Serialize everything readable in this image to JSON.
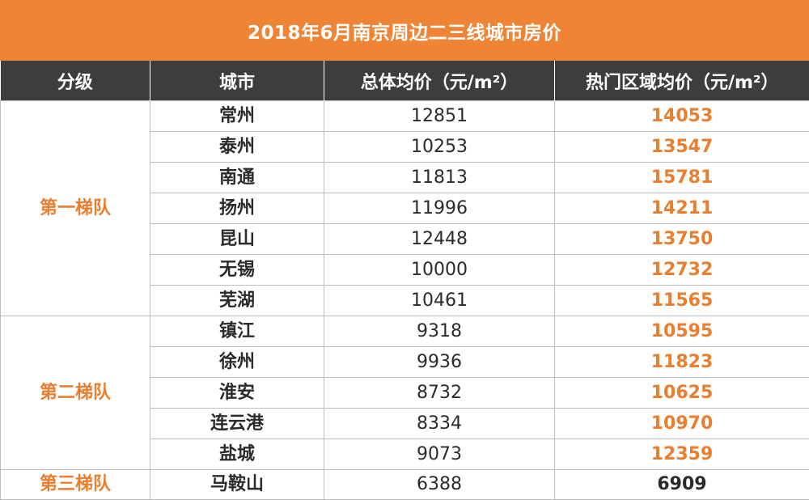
{
  "title": "2018年6月南京周边二三线城市房价",
  "headers": [
    "分级",
    "城市",
    "总体均价（元/m²）",
    "热门区域均价（元/m²）"
  ],
  "tiers": [
    {
      "label": "第一梯队",
      "rows": [
        {
          "city": "常州",
          "avg": "12851",
          "hot": "14053"
        },
        {
          "city": "泰州",
          "avg": "10253",
          "hot": "13547"
        },
        {
          "city": "南通",
          "avg": "11813",
          "hot": "15781"
        },
        {
          "city": "扬州",
          "avg": "11996",
          "hot": "14211"
        },
        {
          "city": "昆山",
          "avg": "12448",
          "hot": "13750"
        },
        {
          "city": "无锡",
          "avg": "10000",
          "hot": "12732"
        },
        {
          "city": "芜湖",
          "avg": "10461",
          "hot": "11565"
        }
      ]
    },
    {
      "label": "第二梯队",
      "rows": [
        {
          "city": "镇江",
          "avg": "9318",
          "hot": "10595"
        },
        {
          "city": "徐州",
          "avg": "9936",
          "hot": "11823"
        },
        {
          "city": "淮安",
          "avg": "8732",
          "hot": "10625"
        },
        {
          "city": "连云港",
          "avg": "8334",
          "hot": "10970"
        },
        {
          "city": "盐城",
          "avg": "9073",
          "hot": "12359"
        }
      ]
    },
    {
      "label": "第三梯队",
      "rows": [
        {
          "city": "马鞍山",
          "avg": "6388",
          "hot": "6909"
        }
      ]
    }
  ],
  "colors": {
    "accent": "#ee8536",
    "header_bg": "#3d3d3d",
    "text": "#2b2b2b"
  }
}
